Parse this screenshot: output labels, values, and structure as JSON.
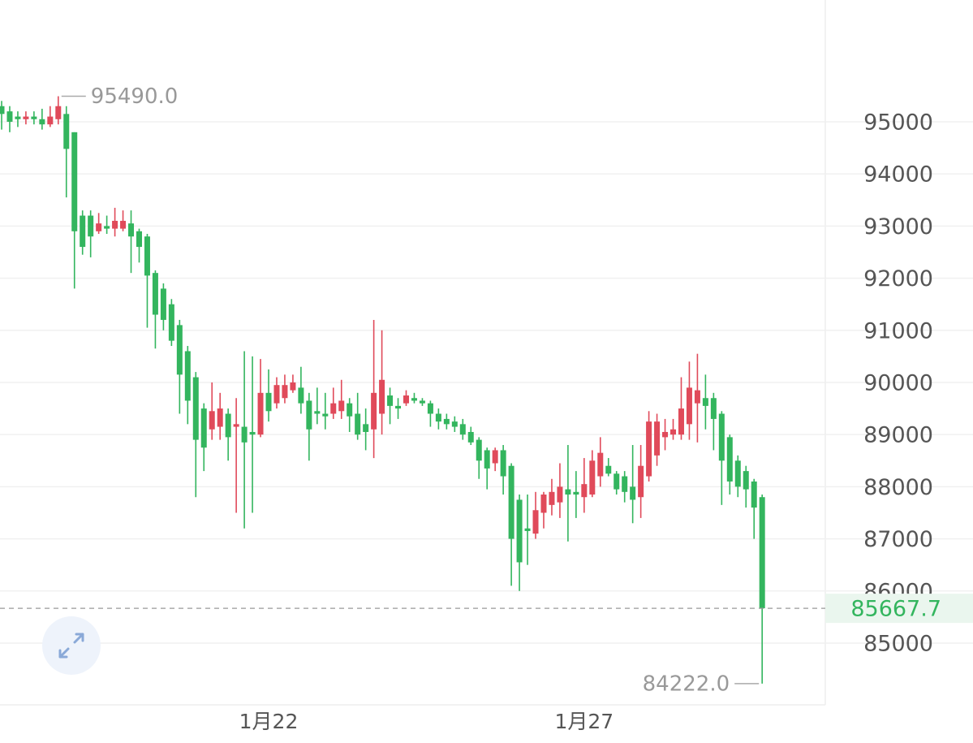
{
  "chart_data": {
    "type": "candlestick",
    "categories": [
      null,
      null,
      null,
      null,
      null,
      null,
      null,
      null,
      null,
      null,
      null,
      null,
      null,
      null,
      null,
      null,
      null,
      null,
      null,
      null,
      null,
      null,
      null,
      null,
      null,
      null,
      null,
      null,
      null,
      null,
      null,
      null,
      null,
      "1月22",
      null,
      null,
      null,
      null,
      null,
      null,
      null,
      null,
      null,
      null,
      null,
      null,
      null,
      null,
      null,
      null,
      null,
      null,
      null,
      null,
      null,
      null,
      null,
      null,
      null,
      null,
      null,
      null,
      null,
      null,
      null,
      null,
      null,
      null,
      null,
      null,
      null,
      null,
      "1月27",
      null,
      null,
      null,
      null,
      null,
      null,
      null,
      null,
      null,
      null,
      null,
      null,
      null,
      null,
      null,
      null,
      null,
      null,
      null,
      null,
      null,
      null
    ],
    "open": [
      95300,
      95200,
      95100,
      95050,
      95100,
      95050,
      94950,
      95050,
      95150,
      94800,
      93200,
      93200,
      92900,
      93000,
      92950,
      92950,
      93050,
      92900,
      92800,
      92100,
      91800,
      91500,
      91100,
      90600,
      90100,
      89500,
      89100,
      89150,
      89400,
      89150,
      89150,
      89050,
      89000,
      89800,
      89600,
      89700,
      89850,
      89900,
      89650,
      89450,
      89400,
      89400,
      89450,
      89600,
      89400,
      89200,
      89100,
      89400,
      89750,
      89550,
      89600,
      89700,
      89650,
      89600,
      89400,
      89300,
      89250,
      89200,
      89050,
      88900,
      88700,
      88450,
      88700,
      88400,
      87750,
      87200,
      87100,
      87500,
      87650,
      87700,
      87950,
      87900,
      87800,
      87850,
      88200,
      88400,
      88250,
      88200,
      88000,
      87800,
      88200,
      88600,
      88950,
      89000,
      89000,
      89200,
      89600,
      89700,
      89700,
      89400,
      88950,
      88500,
      88300,
      88100,
      87800
    ],
    "high": [
      95400,
      95300,
      95200,
      95200,
      95200,
      95250,
      95300,
      95490,
      95300,
      94800,
      93300,
      93300,
      93250,
      93200,
      93350,
      93300,
      93300,
      92950,
      92850,
      92150,
      91900,
      91600,
      91200,
      90700,
      90200,
      89600,
      90000,
      89800,
      89500,
      89700,
      90600,
      90500,
      90450,
      90250,
      90100,
      90150,
      90150,
      90300,
      89800,
      89900,
      89800,
      89900,
      90050,
      89700,
      89800,
      89500,
      91200,
      91000,
      89900,
      89700,
      89850,
      89800,
      89700,
      89650,
      89500,
      89400,
      89350,
      89300,
      89150,
      88950,
      88750,
      88750,
      88800,
      88450,
      87850,
      87850,
      87900,
      87900,
      88150,
      88450,
      88800,
      88300,
      88550,
      88700,
      88950,
      88550,
      88300,
      88300,
      88800,
      88800,
      89450,
      89400,
      89300,
      89300,
      90100,
      90400,
      90550,
      90150,
      89800,
      89450,
      89000,
      88600,
      88400,
      88150,
      87850
    ],
    "low": [
      94850,
      94800,
      94900,
      94950,
      94950,
      94850,
      94900,
      94950,
      93550,
      91800,
      92450,
      92400,
      92850,
      92850,
      92800,
      92900,
      92100,
      92300,
      91050,
      90650,
      91000,
      90700,
      89400,
      89200,
      87800,
      88300,
      88900,
      88900,
      88500,
      87500,
      87200,
      87500,
      88950,
      89250,
      89500,
      89600,
      89800,
      89400,
      88500,
      89200,
      89100,
      89300,
      89300,
      89050,
      88900,
      88700,
      88550,
      89000,
      89200,
      89300,
      89550,
      89600,
      89550,
      89150,
      89100,
      89100,
      89050,
      88900,
      88800,
      88150,
      87950,
      88300,
      87850,
      86100,
      86000,
      86500,
      87000,
      87200,
      87450,
      87400,
      86950,
      87400,
      87500,
      87800,
      88000,
      88200,
      87850,
      87700,
      87300,
      87400,
      88100,
      88400,
      88700,
      88900,
      88900,
      88900,
      88850,
      89100,
      88700,
      87650,
      87850,
      87800,
      87600,
      87000,
      84222
    ],
    "close": [
      95150,
      95000,
      95050,
      95100,
      95050,
      94950,
      95100,
      95300,
      94480,
      92900,
      92600,
      92800,
      93050,
      92950,
      93100,
      93100,
      92800,
      92600,
      92050,
      91300,
      91200,
      90800,
      90150,
      89650,
      88900,
      88750,
      89450,
      89500,
      88950,
      89200,
      88850,
      89000,
      89800,
      89450,
      89950,
      89950,
      90000,
      89600,
      89100,
      89400,
      89350,
      89600,
      89650,
      89350,
      89000,
      89050,
      89800,
      90050,
      89550,
      89500,
      89750,
      89650,
      89600,
      89400,
      89250,
      89200,
      89150,
      89000,
      88850,
      88500,
      88350,
      88700,
      88200,
      87000,
      86550,
      87150,
      87550,
      87850,
      87900,
      88000,
      87850,
      87850,
      88050,
      88500,
      88650,
      88250,
      87950,
      87900,
      87750,
      88400,
      89250,
      89250,
      89050,
      89100,
      89500,
      89900,
      89850,
      89550,
      89300,
      88500,
      88100,
      88000,
      87950,
      87600,
      85667.7
    ],
    "up_color": "#e04a5a",
    "down_color": "#33b55e",
    "ylim": [
      83816,
      97336
    ],
    "yticks": [
      85000,
      86000,
      87000,
      88000,
      89000,
      90000,
      91000,
      92000,
      93000,
      94000,
      95000
    ],
    "grid": true,
    "annotations": {
      "high_label": "95490.0",
      "low_label": "84222.0",
      "last_price_label": "85667.7"
    }
  }
}
